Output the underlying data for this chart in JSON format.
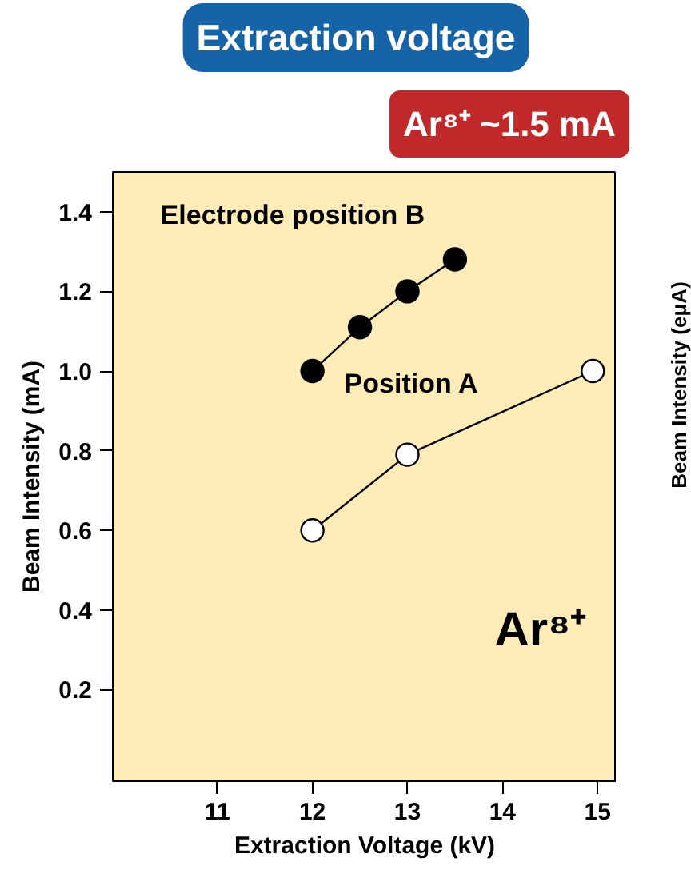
{
  "chart_data": {
    "type": "line",
    "marker": "circle",
    "title": "Extraction voltage",
    "xlabel": "Extraction Voltage (kV)",
    "ylabel": "Beam Intensity (mA)",
    "x": [
      12,
      12.5,
      13,
      13.5
    ],
    "series": [
      {
        "name": "Electrode position B",
        "color": "#000000",
        "values": [
          1.0,
          1.11,
          1.2,
          1.28
        ]
      },
      {
        "name": "Position A",
        "color": "#ffffff",
        "x": [
          12,
          13,
          14.95
        ],
        "values": [
          0.6,
          0.79,
          1.0
        ]
      }
    ],
    "xlim": [
      9.9,
      15.2
    ],
    "ylim": [
      -0.03,
      1.5
    ],
    "xticks": [
      11,
      12,
      13,
      14,
      15
    ],
    "yticks": [
      0.2,
      0.4,
      0.6,
      0.8,
      {
        "value": 1,
        "label": "1.0"
      },
      1.2,
      1.4
    ],
    "grid": false,
    "line_style": "solid",
    "annotations": [
      "Ar⁸⁺ ~1.5 mA",
      "Ar⁸⁺",
      "Beam Intensity (eμA)"
    ]
  }
}
